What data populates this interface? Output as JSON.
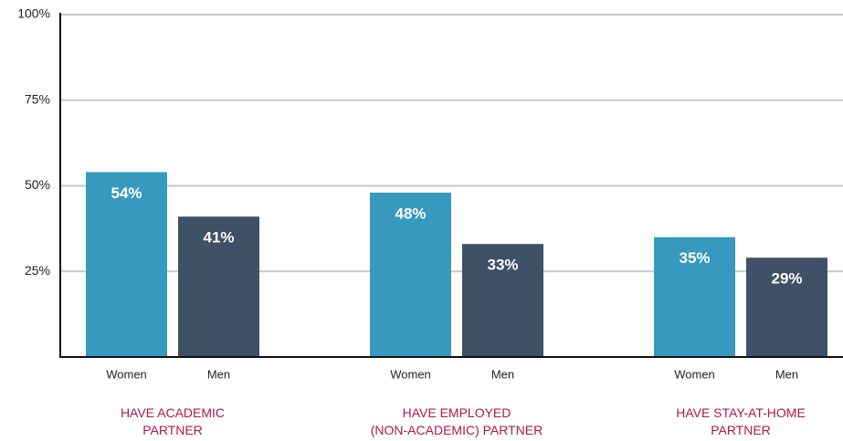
{
  "chart_data": {
    "type": "bar",
    "categories": [
      "HAVE ACADEMIC\nPARTNER",
      "HAVE EMPLOYED\n(NON-ACADEMIC) PARTNER",
      "HAVE STAY-AT-HOME\nPARTNER"
    ],
    "series": [
      {
        "name": "Women",
        "color": "#3799bd",
        "values": [
          54,
          48,
          35
        ],
        "value_labels": [
          "54%",
          "48%",
          "35%"
        ]
      },
      {
        "name": "Men",
        "color": "#3e5166",
        "values": [
          41,
          33,
          29
        ],
        "value_labels": [
          "41%",
          "33%",
          "29%"
        ]
      }
    ],
    "ylim": [
      0,
      100
    ],
    "yticks": [
      {
        "value": 25,
        "label": "25%"
      },
      {
        "value": 50,
        "label": "50%"
      },
      {
        "value": 75,
        "label": "75%"
      },
      {
        "value": 100,
        "label": "100%"
      }
    ],
    "grid": true
  }
}
